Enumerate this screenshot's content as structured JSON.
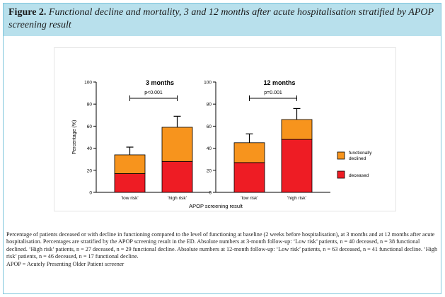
{
  "figure": {
    "label": "Figure 2.",
    "title": "Functional decline and mortality, 3 and 12 months after acute hospitalisation stratified by APOP screening result"
  },
  "caption": {
    "text": "Percentage of patients deceased or with decline in functioning compared to the level of functioning at baseline (2 weeks before hospitalisation), at 3 months and at 12 months after acute hospitalisation. Percentages are stratified by the APOP screening result in the ED. Absolute numbers at 3-month follow-up: ‘Low risk’ patients, n = 40 deceased, n = 38 functional declined. ‘High risk’ patients, n = 27 deceased, n = 29 functional decline. Absolute numbers at 12-month follow-up: ‘Low risk’ patients, n = 63 deceased, n = 41 functional decline. ‘High risk’ patients, n = 46 deceased, n = 17 functional decline.",
    "abbreviation": "APOP = Acutely Presenting Older Patient screener"
  },
  "colors": {
    "deceased": "#ee1c24",
    "declined": "#f7941d",
    "header_bg": "#b8e0ec"
  },
  "chart_data": {
    "type": "bar",
    "stacked": true,
    "ylabel": "Percentage (%)",
    "xlabel": "APOP screening result",
    "ylim": [
      0,
      100
    ],
    "yticks": [
      "0",
      "20",
      "40",
      "60",
      "80",
      "100"
    ],
    "legend": {
      "placement": "right",
      "entries": [
        "functionally declined",
        "deceased"
      ]
    },
    "panels": [
      {
        "title": "3 months",
        "pvalue": "p<0.001",
        "categories": [
          "'low risk'",
          "'high risk'"
        ],
        "series": [
          {
            "name": "deceased",
            "values": [
              17,
              28
            ]
          },
          {
            "name": "functionally declined",
            "values": [
              17,
              31
            ]
          }
        ],
        "error_top": [
          41,
          69
        ]
      },
      {
        "title": "12 months",
        "pvalue": "p=0.001",
        "categories": [
          "'low risk'",
          "'high risk'"
        ],
        "series": [
          {
            "name": "deceased",
            "values": [
              27,
              48
            ]
          },
          {
            "name": "functionally declined",
            "values": [
              18,
              18
            ]
          }
        ],
        "error_top": [
          53,
          76
        ]
      }
    ]
  }
}
